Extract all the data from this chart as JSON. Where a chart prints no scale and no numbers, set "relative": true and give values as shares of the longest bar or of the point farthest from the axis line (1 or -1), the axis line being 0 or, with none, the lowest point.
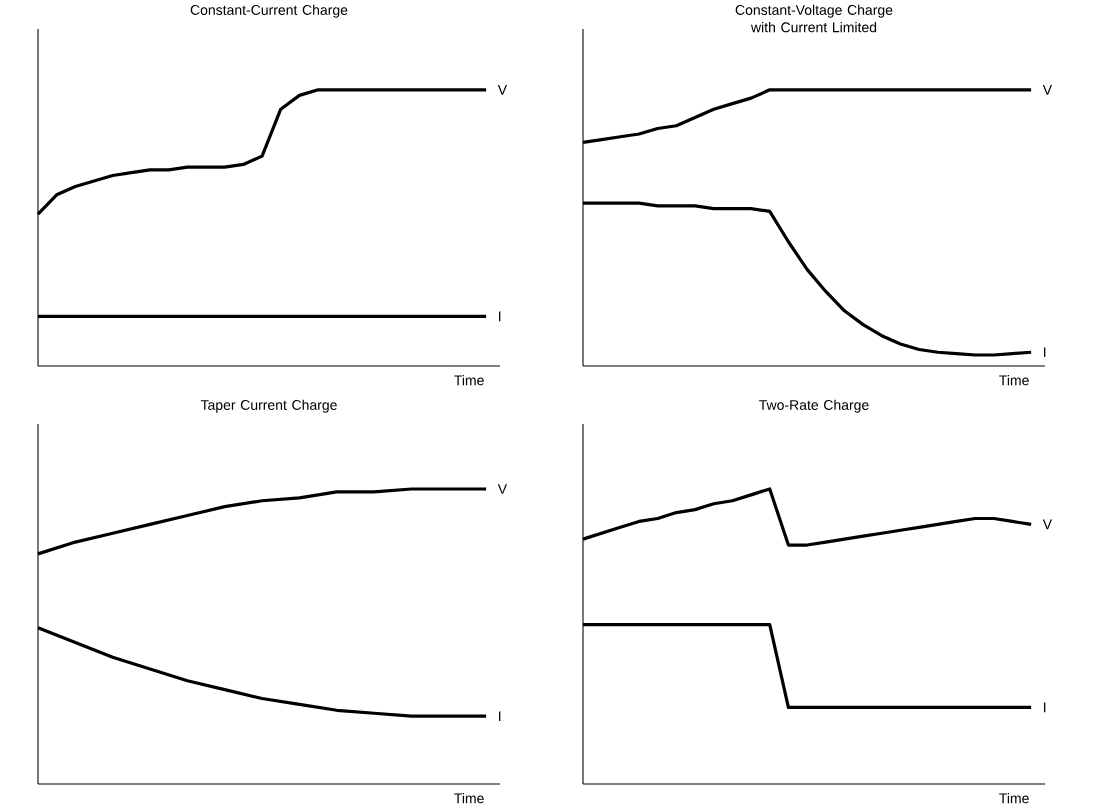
{
  "chart_data": [
    {
      "type": "line",
      "title": "Constant-Current Charge",
      "xlabel": "Time",
      "relative": true,
      "marker": "none",
      "categories": [
        null,
        null,
        null,
        null,
        null,
        null,
        null,
        null,
        null,
        null,
        null,
        null,
        null,
        null,
        null,
        null,
        null,
        null,
        null,
        null,
        null,
        null,
        null,
        null,
        null
      ],
      "series": [
        {
          "name": "V",
          "color": "#000000",
          "values": [
            0.55,
            0.62,
            0.65,
            0.67,
            0.69,
            0.7,
            0.71,
            0.71,
            0.72,
            0.72,
            0.72,
            0.73,
            0.76,
            0.93,
            0.98,
            1.0,
            1.0,
            1.0,
            1.0,
            1.0,
            1.0,
            1.0,
            1.0,
            1.0,
            1.0
          ]
        },
        {
          "name": "I",
          "color": "#000000",
          "values": [
            0.18,
            0.18,
            0.18,
            0.18,
            0.18,
            0.18,
            0.18,
            0.18,
            0.18,
            0.18,
            0.18,
            0.18,
            0.18,
            0.18,
            0.18,
            0.18,
            0.18,
            0.18,
            0.18,
            0.18,
            0.18,
            0.18,
            0.18,
            0.18,
            0.18
          ]
        }
      ]
    },
    {
      "type": "line",
      "title": "Constant-Voltage Charge with Current Limited",
      "xlabel": "Time",
      "relative": true,
      "marker": "none",
      "categories": [
        null,
        null,
        null,
        null,
        null,
        null,
        null,
        null,
        null,
        null,
        null,
        null,
        null,
        null,
        null,
        null,
        null,
        null,
        null,
        null,
        null,
        null,
        null,
        null,
        null
      ],
      "series": [
        {
          "name": "V",
          "color": "#000000",
          "values": [
            0.81,
            0.82,
            0.83,
            0.84,
            0.86,
            0.87,
            0.9,
            0.93,
            0.95,
            0.97,
            1.0,
            1.0,
            1.0,
            1.0,
            1.0,
            1.0,
            1.0,
            1.0,
            1.0,
            1.0,
            1.0,
            1.0,
            1.0,
            1.0,
            1.0
          ]
        },
        {
          "name": "I",
          "color": "#000000",
          "values": [
            0.59,
            0.59,
            0.59,
            0.59,
            0.58,
            0.58,
            0.58,
            0.57,
            0.57,
            0.57,
            0.56,
            0.45,
            0.35,
            0.27,
            0.2,
            0.15,
            0.11,
            0.08,
            0.06,
            0.05,
            0.045,
            0.04,
            0.04,
            0.045,
            0.05
          ]
        }
      ]
    },
    {
      "type": "line",
      "title": "Taper Current Charge",
      "xlabel": "Time",
      "relative": true,
      "marker": "none",
      "categories": [
        null,
        null,
        null,
        null,
        null,
        null,
        null,
        null,
        null,
        null,
        null,
        null,
        null
      ],
      "series": [
        {
          "name": "V",
          "color": "#000000",
          "values": [
            0.78,
            0.82,
            0.85,
            0.88,
            0.91,
            0.94,
            0.96,
            0.97,
            0.99,
            0.99,
            1.0,
            1.0,
            1.0
          ]
        },
        {
          "name": "I",
          "color": "#000000",
          "values": [
            0.53,
            0.48,
            0.43,
            0.39,
            0.35,
            0.32,
            0.29,
            0.27,
            0.25,
            0.24,
            0.23,
            0.23,
            0.23
          ]
        }
      ]
    },
    {
      "type": "line",
      "title": "Two-Rate Charge",
      "xlabel": "Time",
      "relative": true,
      "marker": "none",
      "categories": [
        null,
        null,
        null,
        null,
        null,
        null,
        null,
        null,
        null,
        null,
        null,
        null,
        null,
        null,
        null,
        null,
        null,
        null,
        null,
        null,
        null,
        null,
        null,
        null,
        null
      ],
      "series": [
        {
          "name": "V",
          "color": "#000000",
          "values": [
            0.83,
            0.85,
            0.87,
            0.89,
            0.9,
            0.92,
            0.93,
            0.95,
            0.96,
            0.98,
            1.0,
            0.81,
            0.81,
            0.82,
            0.83,
            0.84,
            0.85,
            0.86,
            0.87,
            0.88,
            0.89,
            0.9,
            0.9,
            0.89,
            0.88
          ]
        },
        {
          "name": "I",
          "color": "#000000",
          "values": [
            0.54,
            0.54,
            0.54,
            0.54,
            0.54,
            0.54,
            0.54,
            0.54,
            0.54,
            0.54,
            0.54,
            0.26,
            0.26,
            0.26,
            0.26,
            0.26,
            0.26,
            0.26,
            0.26,
            0.26,
            0.26,
            0.26,
            0.26,
            0.26,
            0.26
          ]
        }
      ]
    }
  ]
}
